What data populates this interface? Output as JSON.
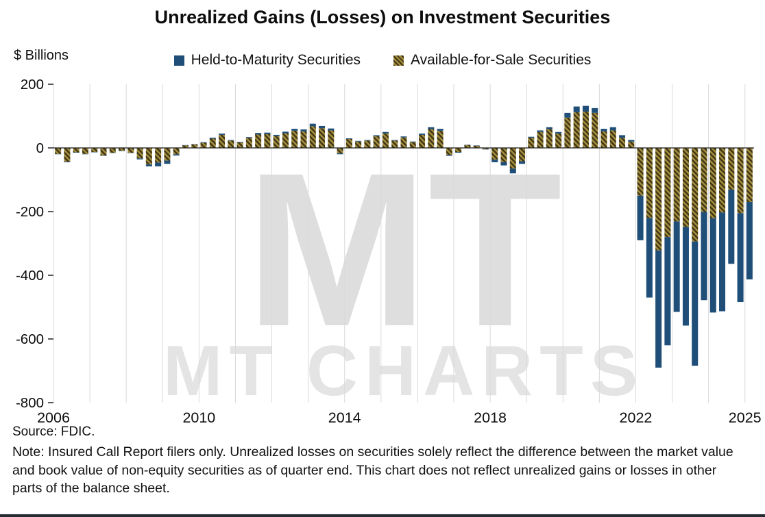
{
  "title": "Unrealized Gains (Losses) on Investment Securities",
  "y_axis_unit": "$ Billions",
  "legend": [
    {
      "label": "Held-to-Maturity Securities",
      "color": "#1f4e79",
      "pattern": "solid"
    },
    {
      "label": "Available-for-Sale Securities",
      "color": "#a38d3f",
      "pattern": "hatch"
    }
  ],
  "watermark": {
    "monogram": "MT",
    "text": "MT CHARTS"
  },
  "source": "Source: FDIC.",
  "note": "Note: Insured Call Report filers only. Unrealized losses on securities solely reflect the difference between the market value and book value of non-equity securities as of quarter end. This chart does not reflect unrealized gains or losses in other parts of the balance sheet.",
  "chart_data": {
    "type": "bar",
    "stacked": true,
    "title": "Unrealized Gains (Losses) on Investment Securities",
    "ylabel": "$ Billions",
    "unit": "$ Billions (quarterly)",
    "ylim": [
      -800,
      200
    ],
    "y_ticks": [
      200,
      0,
      -200,
      -400,
      -600,
      -800
    ],
    "x_tick_labels": [
      "2006",
      "2010",
      "2014",
      "2018",
      "2022",
      "2025"
    ],
    "grid": "vertical-yearly",
    "legend_position": "top-center",
    "categories": [
      "2006 Q1",
      "2006 Q2",
      "2006 Q3",
      "2006 Q4",
      "2007 Q1",
      "2007 Q2",
      "2007 Q3",
      "2007 Q4",
      "2008 Q1",
      "2008 Q2",
      "2008 Q3",
      "2008 Q4",
      "2009 Q1",
      "2009 Q2",
      "2009 Q3",
      "2009 Q4",
      "2010 Q1",
      "2010 Q2",
      "2010 Q3",
      "2010 Q4",
      "2011 Q1",
      "2011 Q2",
      "2011 Q3",
      "2011 Q4",
      "2012 Q1",
      "2012 Q2",
      "2012 Q3",
      "2012 Q4",
      "2013 Q1",
      "2013 Q2",
      "2013 Q3",
      "2013 Q4",
      "2014 Q1",
      "2014 Q2",
      "2014 Q3",
      "2014 Q4",
      "2015 Q1",
      "2015 Q2",
      "2015 Q3",
      "2015 Q4",
      "2016 Q1",
      "2016 Q2",
      "2016 Q3",
      "2016 Q4",
      "2017 Q1",
      "2017 Q2",
      "2017 Q3",
      "2017 Q4",
      "2018 Q1",
      "2018 Q2",
      "2018 Q3",
      "2018 Q4",
      "2019 Q1",
      "2019 Q2",
      "2019 Q3",
      "2019 Q4",
      "2020 Q1",
      "2020 Q2",
      "2020 Q3",
      "2020 Q4",
      "2021 Q1",
      "2021 Q2",
      "2021 Q3",
      "2021 Q4",
      "2022 Q1",
      "2022 Q2",
      "2022 Q3",
      "2022 Q4",
      "2023 Q1",
      "2023 Q2",
      "2023 Q3",
      "2023 Q4",
      "2024 Q1",
      "2024 Q2",
      "2024 Q3",
      "2024 Q4",
      "2025 Q1"
    ],
    "series": [
      {
        "name": "Available-for-Sale Securities",
        "style": "hatch",
        "color": "#a38d3f",
        "hatch_dark": "#3e3513",
        "values": [
          -19,
          -43,
          -14,
          -19,
          -13,
          -24,
          -15,
          -9,
          -15,
          -33,
          -52,
          -46,
          -40,
          -20,
          8,
          11,
          16,
          29,
          41,
          23,
          17,
          31,
          42,
          43,
          37,
          46,
          54,
          52,
          68,
          62,
          55,
          -17,
          28,
          20,
          23,
          37,
          46,
          23,
          33,
          18,
          41,
          59,
          54,
          -22,
          -13,
          9,
          7,
          -4,
          -37,
          -45,
          -65,
          -42,
          32,
          50,
          59,
          45,
          95,
          112,
          114,
          110,
          52,
          55,
          32,
          20,
          -150,
          -220,
          -322,
          -280,
          -231,
          -248,
          -294,
          -201,
          -221,
          -203,
          -131,
          -205,
          -170
        ]
      },
      {
        "name": "Held-to-Maturity Securities",
        "style": "solid",
        "color": "#1f4e79",
        "values": [
          -1,
          -2,
          -1,
          -1,
          -1,
          -1,
          -1,
          -1,
          -1,
          -3,
          -6,
          -12,
          -10,
          -4,
          1,
          1,
          2,
          3,
          4,
          2,
          2,
          3,
          5,
          5,
          4,
          5,
          6,
          6,
          8,
          7,
          6,
          -3,
          2,
          2,
          2,
          3,
          4,
          2,
          3,
          2,
          4,
          6,
          6,
          -3,
          -2,
          1,
          1,
          -1,
          -8,
          -10,
          -15,
          -8,
          3,
          5,
          6,
          5,
          15,
          18,
          18,
          15,
          8,
          10,
          8,
          5,
          -140,
          -250,
          -368,
          -340,
          -284,
          -310,
          -390,
          -277,
          -296,
          -310,
          -233,
          -279,
          -243
        ]
      }
    ]
  }
}
